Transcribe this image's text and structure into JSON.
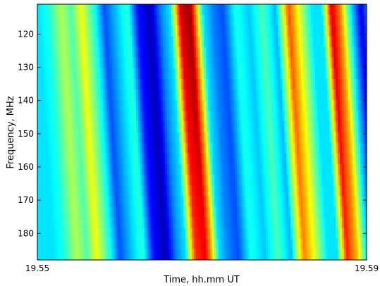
{
  "chart_data": {
    "type": "heatmap",
    "title": "",
    "xlabel": "Time, hh.mm UT",
    "ylabel": "Frequency, MHz",
    "x_ticks": [
      "19.55",
      "19.59"
    ],
    "y_ticks": [
      120,
      130,
      140,
      150,
      160,
      170,
      180
    ],
    "ylim": [
      111,
      188
    ],
    "y_inverted": true,
    "colormap": "jet",
    "grid": false,
    "legend": "none",
    "intensity_columns": {
      "description_free": true,
      "x_fraction": [
        0.0,
        0.03,
        0.07,
        0.1,
        0.13,
        0.17,
        0.2,
        0.23,
        0.27,
        0.3,
        0.34,
        0.37,
        0.4,
        0.43,
        0.46,
        0.48,
        0.5,
        0.53,
        0.56,
        0.6,
        0.64,
        0.68,
        0.72,
        0.76,
        0.8,
        0.83,
        0.86,
        0.89,
        0.92,
        0.95,
        0.98,
        1.0
      ],
      "intensity": [
        0.35,
        0.4,
        0.55,
        0.45,
        0.62,
        0.4,
        0.2,
        0.3,
        0.42,
        0.15,
        0.05,
        0.25,
        0.35,
        0.9,
        0.98,
        0.7,
        0.35,
        0.25,
        0.2,
        0.4,
        0.32,
        0.45,
        0.3,
        0.8,
        0.55,
        0.35,
        0.35,
        0.92,
        0.72,
        0.35,
        0.1,
        0.25
      ]
    }
  }
}
